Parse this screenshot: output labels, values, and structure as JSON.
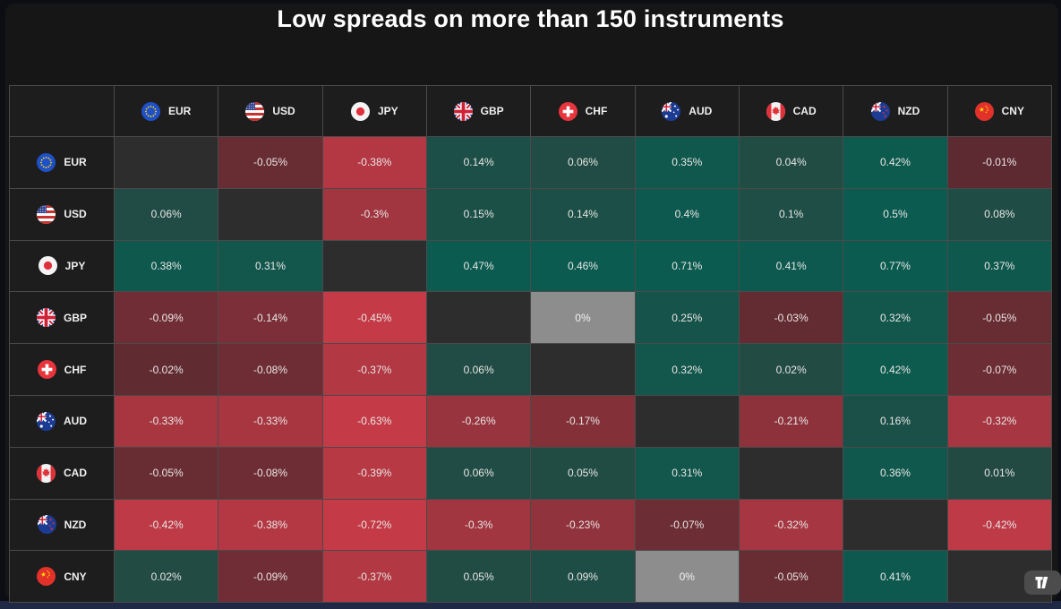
{
  "title": "Low spreads on more than 150 instruments",
  "chart_data": {
    "type": "heatmap",
    "title": "Low spreads on more than 150 instruments",
    "unit": "%",
    "rows": [
      "EUR",
      "USD",
      "JPY",
      "GBP",
      "CHF",
      "AUD",
      "CAD",
      "NZD",
      "CNY"
    ],
    "columns": [
      "EUR",
      "USD",
      "JPY",
      "GBP",
      "CHF",
      "AUD",
      "CAD",
      "NZD",
      "CNY"
    ],
    "values": [
      [
        null,
        -0.05,
        -0.38,
        0.14,
        0.06,
        0.35,
        0.04,
        0.42,
        -0.01
      ],
      [
        0.06,
        null,
        -0.3,
        0.15,
        0.14,
        0.4,
        0.1,
        0.5,
        0.08
      ],
      [
        0.38,
        0.31,
        null,
        0.47,
        0.46,
        0.71,
        0.41,
        0.77,
        0.37
      ],
      [
        -0.09,
        -0.14,
        -0.45,
        null,
        0,
        0.25,
        -0.03,
        0.32,
        -0.05
      ],
      [
        -0.02,
        -0.08,
        -0.37,
        0.06,
        null,
        0.32,
        0.02,
        0.42,
        -0.07
      ],
      [
        -0.33,
        -0.33,
        -0.63,
        -0.26,
        -0.17,
        null,
        -0.21,
        0.16,
        -0.32
      ],
      [
        -0.05,
        -0.08,
        -0.39,
        0.06,
        0.05,
        0.31,
        null,
        0.36,
        0.01
      ],
      [
        -0.42,
        -0.38,
        -0.72,
        -0.3,
        -0.23,
        -0.07,
        -0.32,
        null,
        -0.42
      ],
      [
        0.02,
        -0.09,
        -0.37,
        0.05,
        0.09,
        0,
        -0.05,
        0.41,
        null
      ]
    ],
    "colors": {
      "positive_weak": "#234a43",
      "positive_strong": "#0b5b50",
      "negative_weak": "#5c2a31",
      "negative_strong": "#c43b47",
      "zero": "#8d8d8d",
      "diagonal": "#2d2d2d",
      "header_bg": "#1d1d1d",
      "grid_line": "#4a4a4a",
      "value_text": "#e8e6e4",
      "zero_text": "#f2f2f2"
    },
    "legend_position": "none",
    "grid": true
  },
  "branding": {
    "logo_icon": "tradingview-icon"
  }
}
